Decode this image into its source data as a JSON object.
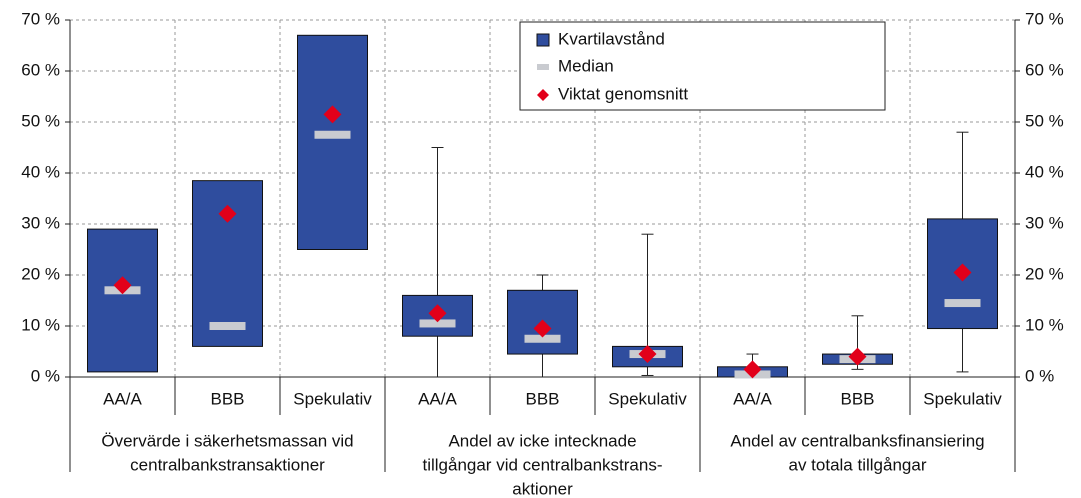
{
  "chart_data": {
    "type": "box",
    "groups": [
      {
        "label": [
          "Övervärde i säkerhetsmassan vid",
          "centralbankstransaktioner"
        ],
        "categories": [
          "AA/A",
          "BBB",
          "Spekulativ"
        ]
      },
      {
        "label": [
          "Andel av icke intecknade",
          "tillgångar vid centralbankstrans-",
          "aktioner"
        ],
        "categories": [
          "AA/A",
          "BBB",
          "Spekulativ"
        ]
      },
      {
        "label": [
          "Andel av centralbanksfinansiering",
          "av totala tillgångar"
        ],
        "categories": [
          "AA/A",
          "BBB",
          "Spekulativ"
        ]
      }
    ],
    "whisker_low": [
      null,
      null,
      null,
      0,
      0,
      0.3,
      0,
      1.5,
      1
    ],
    "q1": [
      1,
      6,
      25,
      8,
      4.5,
      2,
      0,
      2.5,
      9.5
    ],
    "median": [
      17,
      10,
      47.5,
      10.5,
      7.5,
      4.5,
      0.5,
      3.5,
      14.5
    ],
    "q3": [
      29,
      38.5,
      67,
      16,
      17,
      6,
      2,
      4.5,
      31
    ],
    "whisker_high": [
      null,
      null,
      null,
      45,
      20,
      28,
      4.5,
      12,
      48
    ],
    "mean": [
      18,
      32,
      51.5,
      12.5,
      9.5,
      4.5,
      1.5,
      4,
      20.5
    ],
    "series": [
      {
        "name": "Kvartilavstånd",
        "color": "#2f4d9e"
      },
      {
        "name": "Median",
        "color": "#c9cbd0"
      },
      {
        "name": "Viktat genomsnitt",
        "color": "#e2001a"
      }
    ],
    "ylim": [
      0,
      70
    ],
    "yticks": [
      {
        "value": 0,
        "label": "0 %"
      },
      {
        "value": 10,
        "label": "10 %"
      },
      {
        "value": 20,
        "label": "20 %"
      },
      {
        "value": 30,
        "label": "30 %"
      },
      {
        "value": 40,
        "label": "40 %"
      },
      {
        "value": 50,
        "label": "50 %"
      },
      {
        "value": 60,
        "label": "60 %"
      },
      {
        "value": 70,
        "label": "70 %"
      }
    ],
    "grid": true
  }
}
